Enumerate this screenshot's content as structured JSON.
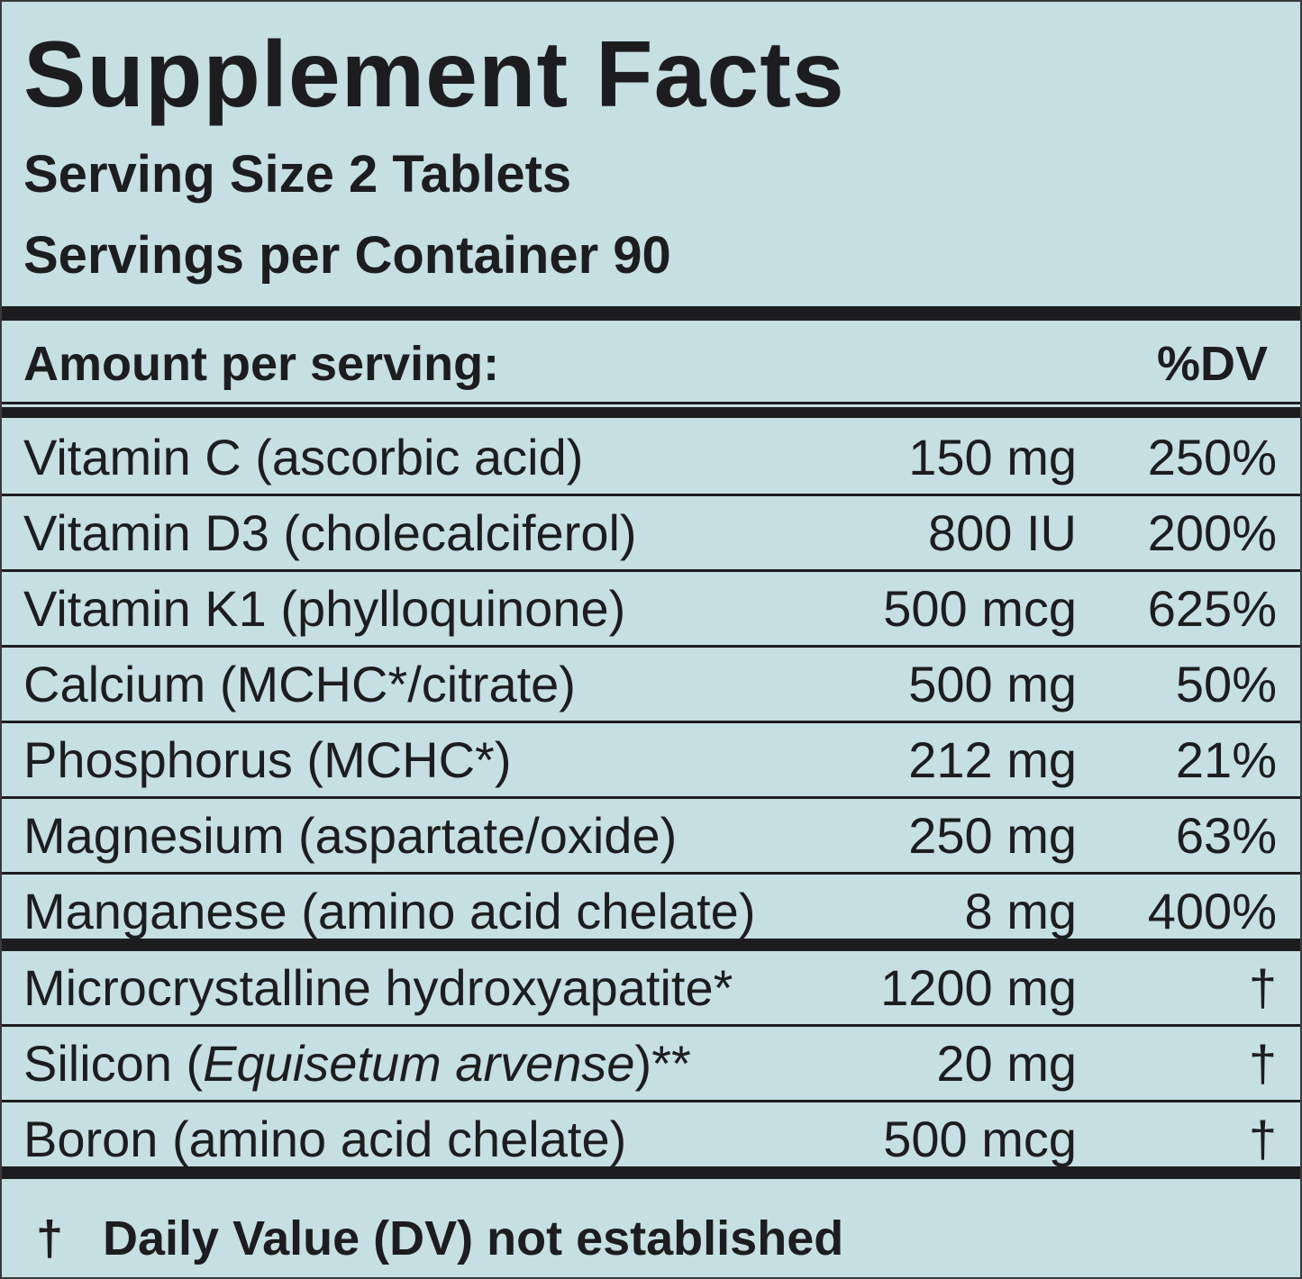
{
  "header": {
    "title": "Supplement Facts",
    "serving_size": "Serving Size 2 Tablets",
    "servings_per_container": "Servings per Container 90"
  },
  "table": {
    "header": {
      "label": "Amount per serving:",
      "dv": "%DV"
    },
    "groups": [
      [
        {
          "name": [
            "Vitamin C (ascorbic acid)"
          ],
          "amount": "150 mg",
          "dv": "250%"
        },
        {
          "name": [
            "Vitamin D3 (cholecalciferol)"
          ],
          "amount": "800 IU",
          "dv": "200%"
        },
        {
          "name": [
            "Vitamin K1 (phylloquinone)"
          ],
          "amount": "500 mcg",
          "dv": "625%"
        },
        {
          "name": [
            "Calcium (MCHC*/citrate)"
          ],
          "amount": "500 mg",
          "dv": "50%"
        },
        {
          "name": [
            "Phosphorus (MCHC*)"
          ],
          "amount": "212 mg",
          "dv": "21%"
        },
        {
          "name": [
            "Magnesium (aspartate/oxide)"
          ],
          "amount": "250 mg",
          "dv": "63%"
        },
        {
          "name": [
            "Manganese (amino acid chelate)"
          ],
          "amount": "8 mg",
          "dv": "400%"
        }
      ],
      [
        {
          "name": [
            "Microcrystalline hydroxyapatite*"
          ],
          "amount": "1200 mg",
          "dv": "†"
        },
        {
          "name": [
            "Silicon (",
            "Equisetum arvense",
            ")**"
          ],
          "amount": "20 mg",
          "dv": "†"
        },
        {
          "name": [
            "Boron (amino acid chelate)"
          ],
          "amount": "500 mcg",
          "dv": "†"
        }
      ]
    ]
  },
  "footer": {
    "mark": "†",
    "text": "Daily Value (DV) not established"
  }
}
